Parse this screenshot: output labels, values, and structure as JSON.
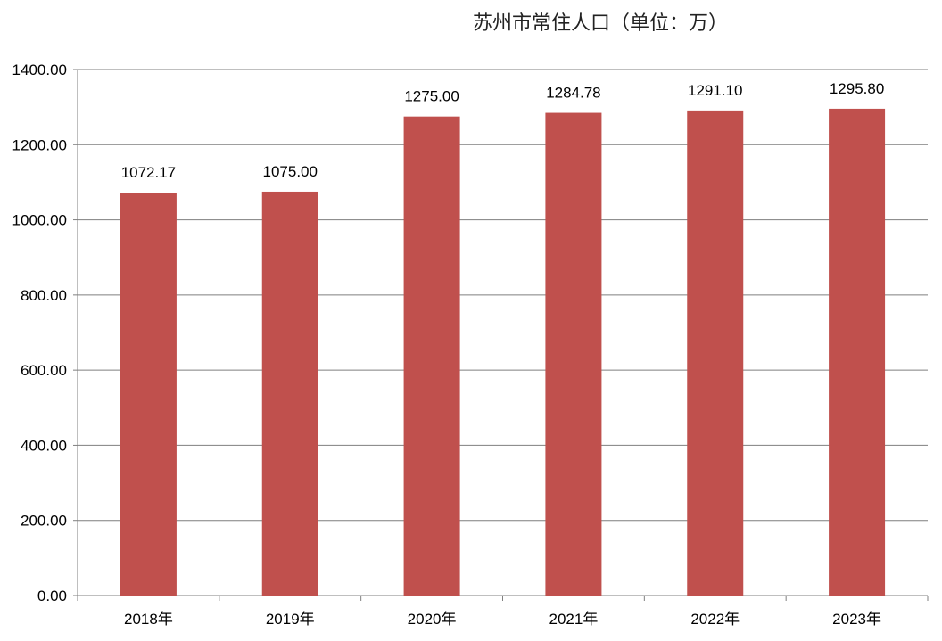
{
  "chart_data": {
    "type": "bar",
    "title": "苏州市常住人口（单位：万）",
    "xlabel": "",
    "ylabel": "",
    "categories": [
      "2018年",
      "2019年",
      "2020年",
      "2021年",
      "2022年",
      "2023年"
    ],
    "series": [
      {
        "values": [
          1072.17,
          1075.0,
          1275.0,
          1284.78,
          1291.1,
          1295.8
        ],
        "data_labels": [
          "1072.17",
          "1075.00",
          "1275.00",
          "1284.78",
          "1291.10",
          "1295.80"
        ],
        "color": "#C0504D"
      }
    ],
    "ylim": [
      0,
      1400
    ],
    "yticks": [
      0,
      200,
      400,
      600,
      800,
      1000,
      1200,
      1400
    ],
    "ytick_labels": [
      "0.00",
      "200.00",
      "400.00",
      "600.00",
      "800.00",
      "1000.00",
      "1200.00",
      "1400.00"
    ],
    "grid": true,
    "legend": "none"
  }
}
